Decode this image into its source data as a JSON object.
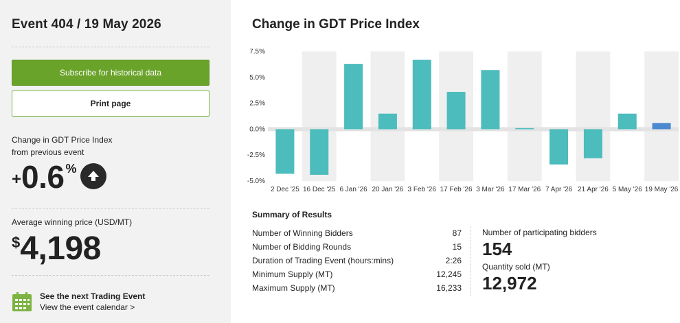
{
  "sidebar": {
    "event_title": "Event 404 / 19 May 2026",
    "subscribe_label": "Subscribe for historical data",
    "print_label": "Print page",
    "change_label_line1": "Change in GDT Price Index",
    "change_label_line2": "from previous event",
    "change_sign": "+",
    "change_value": "0.6",
    "change_unit": "%",
    "change_direction_icon": "arrow-up-circle-icon",
    "price_label": "Average winning price (USD/MT)",
    "price_currency": "$",
    "price_value": "4,198",
    "next_event_title": "See the next Trading Event",
    "next_event_link": "View the event calendar >",
    "calendar_icon": "calendar-icon"
  },
  "main": {
    "title": "Change in GDT Price Index"
  },
  "chart_data": {
    "type": "bar",
    "categories": [
      "2 Dec '25",
      "16 Dec '25",
      "6 Jan '26",
      "20 Jan '26",
      "3 Feb '26",
      "17 Feb '26",
      "3 Mar '26",
      "17 Mar '26",
      "7 Apr '26",
      "21 Apr '26",
      "5 May '26",
      "19 May '26"
    ],
    "values": [
      -4.3,
      -4.4,
      6.3,
      1.5,
      6.7,
      3.6,
      5.7,
      0.1,
      -3.4,
      -2.8,
      1.5,
      0.6
    ],
    "yticks": [
      "7.5%",
      "5.0%",
      "2.5%",
      "0.0%",
      "-2.5%",
      "-5.0%"
    ],
    "ylim": [
      -5.0,
      7.5
    ],
    "bar_color": "#4cbcbc",
    "highlight_color": "#4a89d0",
    "highlight_index": 11,
    "grid": true
  },
  "summary": {
    "title": "Summary of Results",
    "rows": [
      {
        "label": "Number of Winning Bidders",
        "value": "87"
      },
      {
        "label": "Number of Bidding Rounds",
        "value": "15"
      },
      {
        "label": "Duration of Trading Event (hours:mins)",
        "value": "2:26"
      },
      {
        "label": "Minimum Supply (MT)",
        "value": "12,245"
      },
      {
        "label": "Maximum Supply (MT)",
        "value": "16,233"
      }
    ],
    "participants_label": "Number of participating bidders",
    "participants_value": "154",
    "quantity_label": "Quantity sold (MT)",
    "quantity_value": "12,972"
  },
  "colors": {
    "accent_green": "#6aa32a",
    "sidebar_bg": "#f2f2f2"
  }
}
